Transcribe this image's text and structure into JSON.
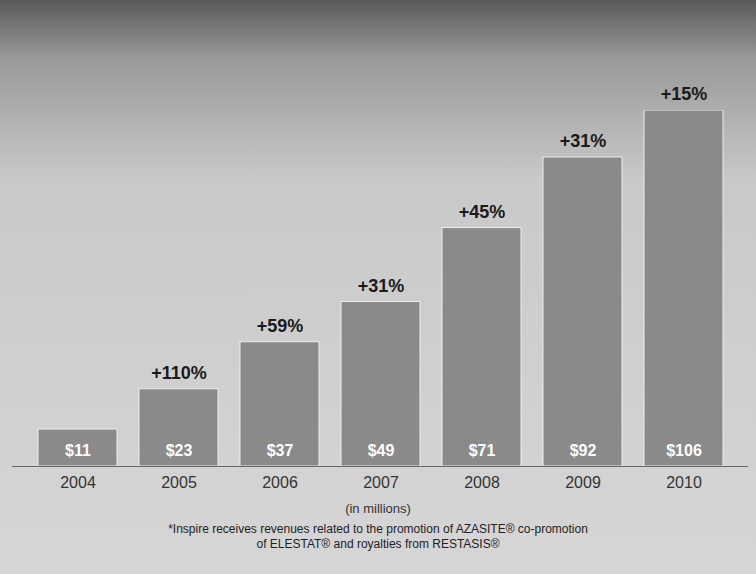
{
  "chart_data": {
    "type": "bar",
    "categories": [
      "2004",
      "2005",
      "2006",
      "2007",
      "2008",
      "2009",
      "2010"
    ],
    "values": [
      11,
      23,
      37,
      49,
      71,
      92,
      106
    ],
    "value_labels": [
      "$11",
      "$23",
      "$37",
      "$49",
      "$71",
      "$92",
      "$106"
    ],
    "annotations": [
      null,
      "+110%",
      "+59%",
      "+31%",
      "+45%",
      "+31%",
      "+15%"
    ],
    "caption": "(in millions)",
    "footnote": "*Inspire receives revenues related to the promotion of AZASITE® co-promotion of ELESTAT® and royalties from RESTASIS®",
    "color": "#8a8a8a",
    "ylim": [
      0,
      106
    ],
    "data_labels": true,
    "tick_labels": "x",
    "grid": false
  }
}
